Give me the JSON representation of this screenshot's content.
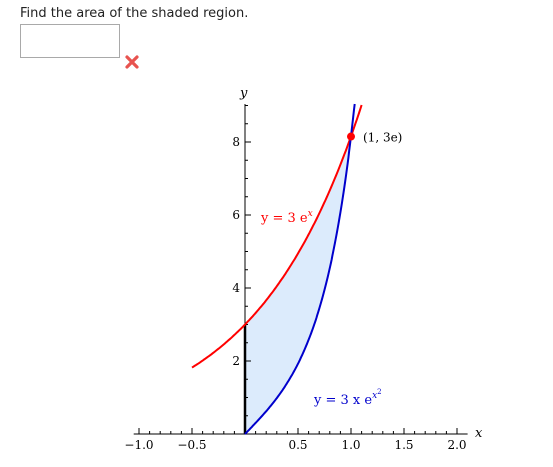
{
  "question": {
    "prompt": "Find the area of the shaded region."
  },
  "answer": {
    "value": "",
    "status": "incorrect"
  },
  "colors": {
    "curve_upper": "#ff0000",
    "curve_lower": "#0000cc",
    "shade": "#dcebfc",
    "wrong_mark": "#e8534f"
  },
  "icons": {
    "status": "x-mark-icon"
  },
  "chart_data": {
    "type": "line",
    "xlabel": "x",
    "ylabel": "y",
    "xlim": [
      -1.05,
      2.1
    ],
    "ylim": [
      0,
      9.5
    ],
    "xticks": [
      -1.0,
      -0.5,
      0.5,
      1.0,
      1.5,
      2.0
    ],
    "xtick_labels": [
      "-1.0",
      "-0.5",
      "0.5",
      "1.0",
      "1.5",
      "2.0"
    ],
    "yticks": [
      2,
      4,
      6,
      8
    ],
    "ytick_labels": [
      "2",
      "4",
      "6",
      "8"
    ],
    "series": [
      {
        "name": "y = 3e^x",
        "label": "y = 3 e",
        "label_exp": "x",
        "function": "3*exp(x)",
        "x_range": [
          -0.5,
          1.1
        ]
      },
      {
        "name": "y = 3xe^(x^2)",
        "label": "y = 3 x e",
        "label_exp": "x",
        "label_exp2": "2",
        "function": "3*x*exp(x^2)",
        "x_range": [
          0,
          1.05
        ]
      }
    ],
    "shaded_region": {
      "x_range": [
        0,
        1
      ],
      "between": [
        "y = 3e^x",
        "y = 3xe^(x^2)"
      ]
    },
    "point": {
      "x": 1.0,
      "y": 8.15,
      "label": "(1, 3e)"
    }
  }
}
